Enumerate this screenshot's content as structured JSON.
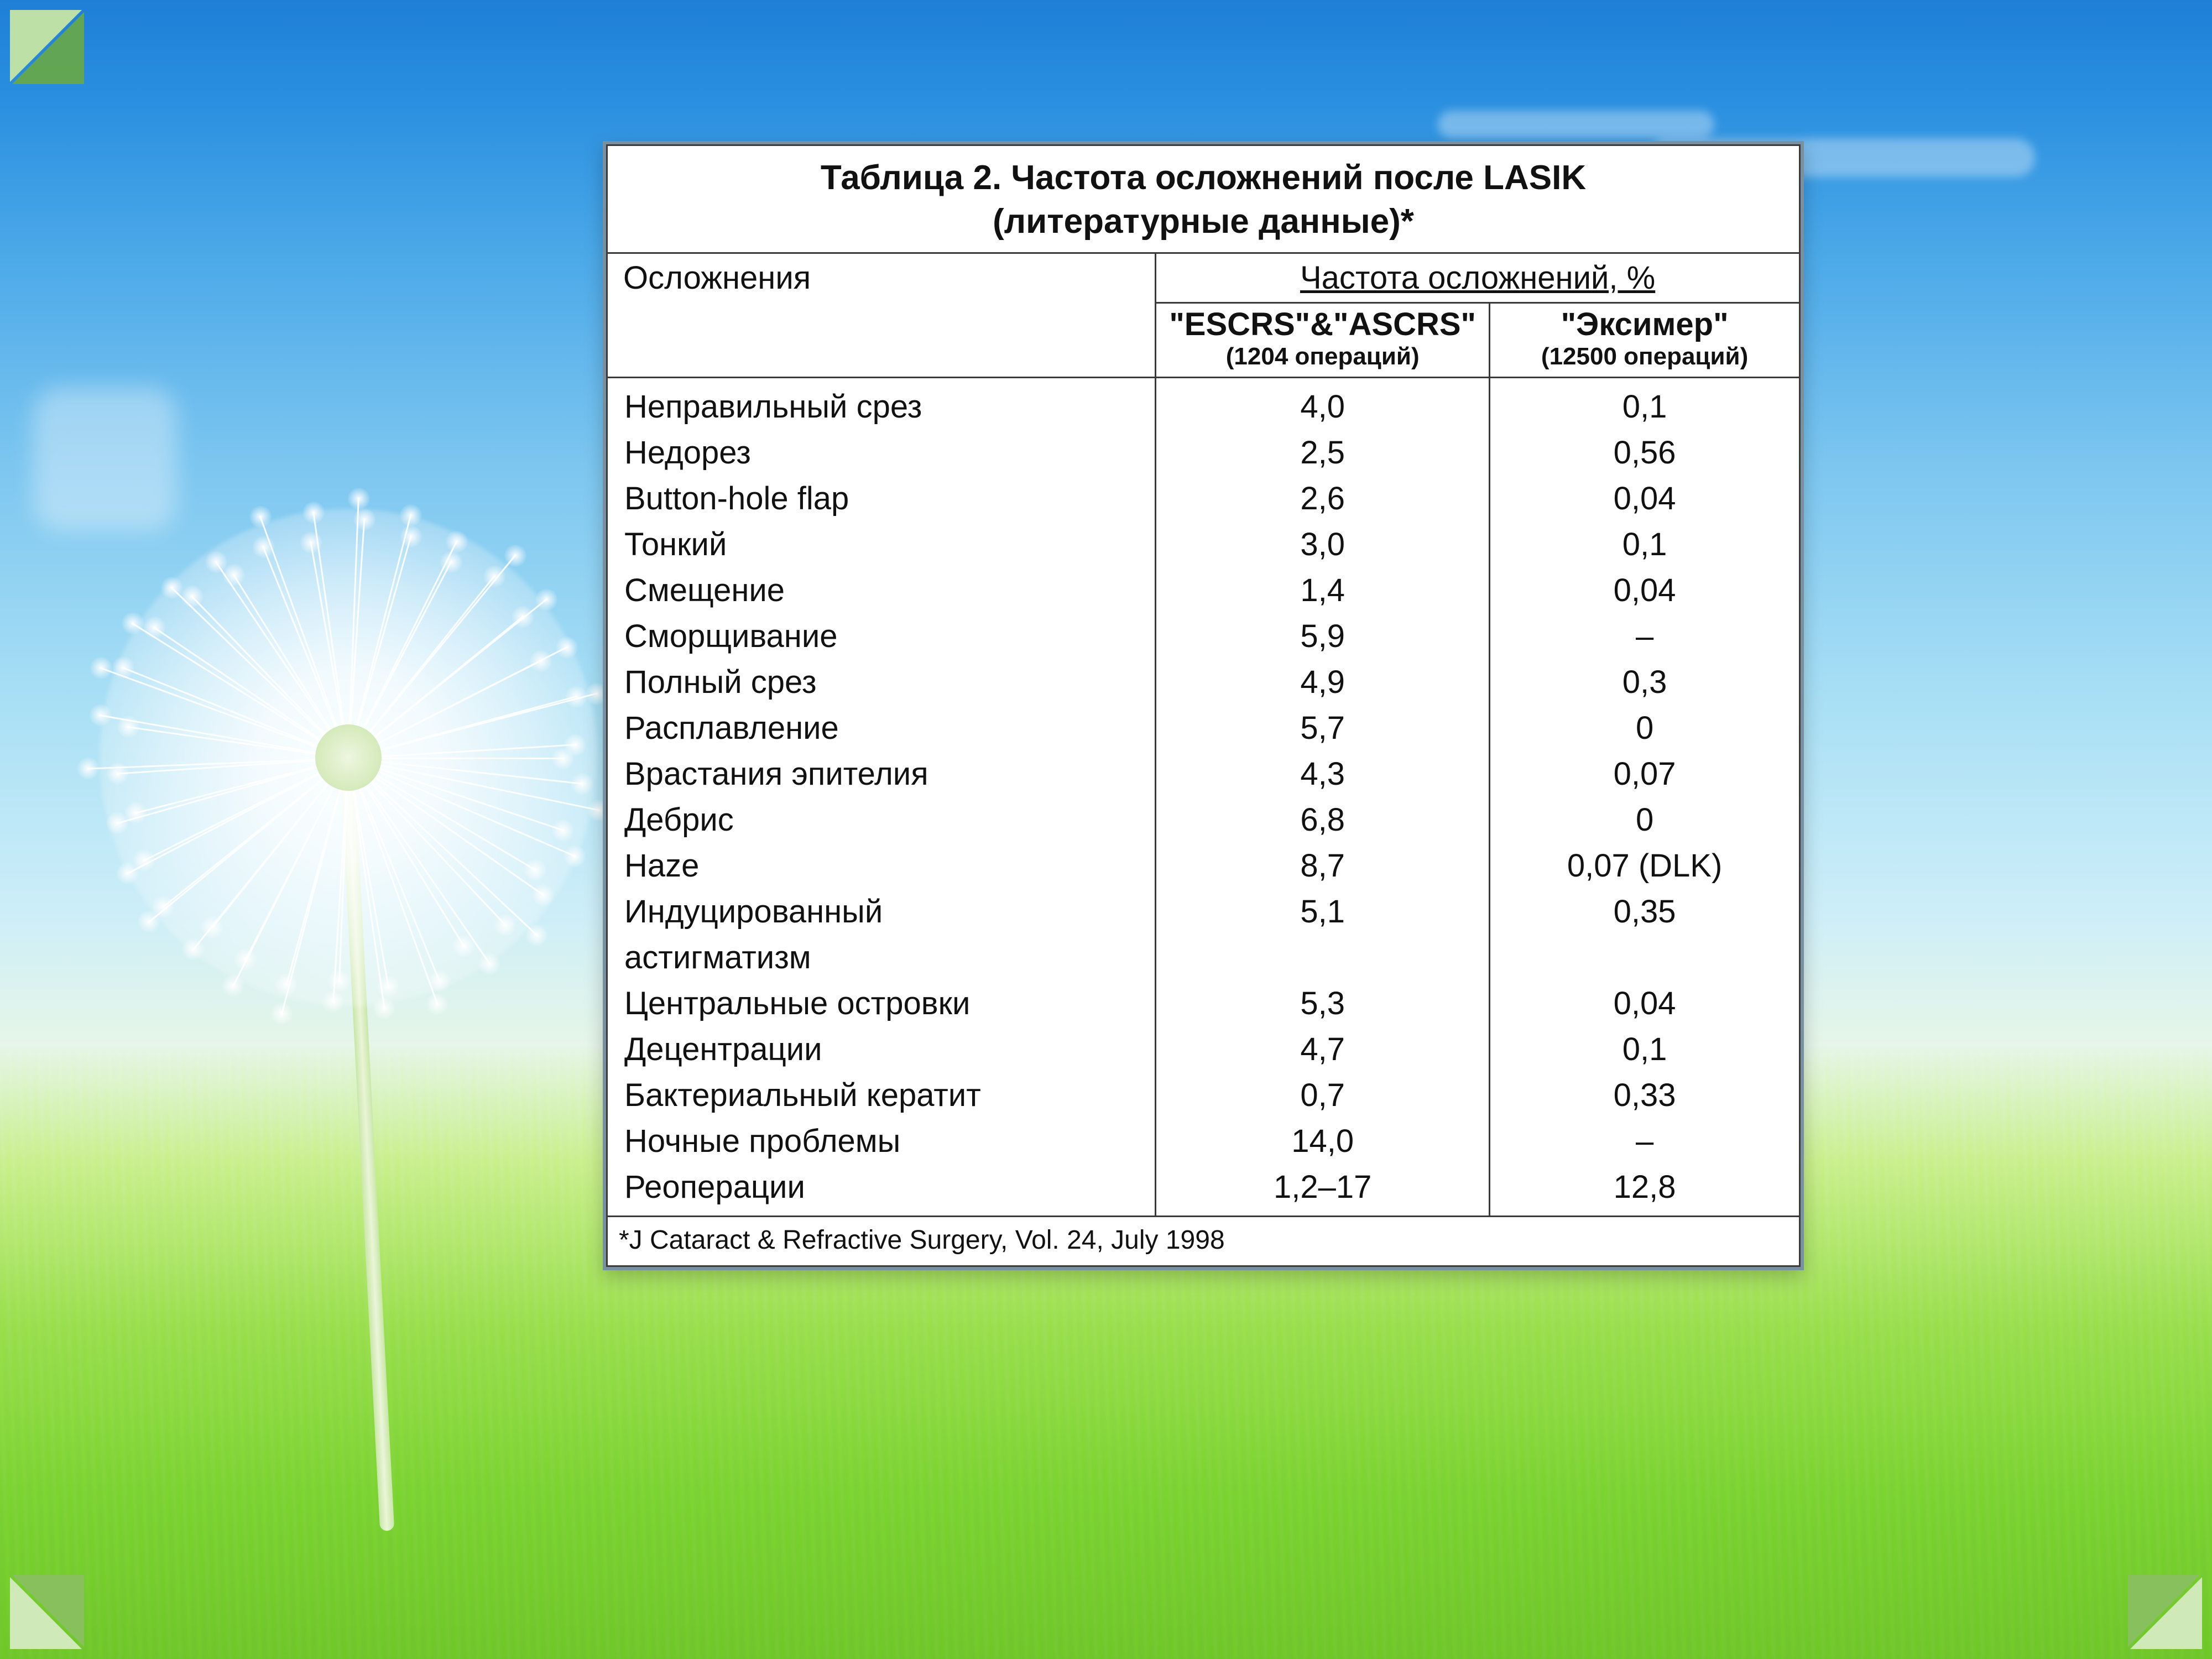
{
  "slide": {
    "background_gradient": [
      "#1e7fd6",
      "#2a8fe0",
      "#4aa8e8",
      "#7cc6f0",
      "#a8dff5",
      "#cdeef8",
      "#e6f6e8",
      "#c9ef8f",
      "#99de4f",
      "#7bd233",
      "#6fc52b"
    ],
    "corner_colors": {
      "light": "#cfe9b8",
      "dark": "#8abf63",
      "tl_light": "#bce0a6",
      "tl_dark": "#69a845"
    }
  },
  "table": {
    "type": "table",
    "panel_border_color": "#7890a0",
    "cell_border_color": "#3a3a3a",
    "background_color": "#ffffff",
    "text_color": "#111111",
    "font_family": "Arial",
    "title_fontsize_pt": 47,
    "body_fontsize_pt": 44,
    "subnote_fontsize_pt": 33,
    "footnote_fontsize_pt": 36,
    "title_line1": "Таблица 2. Частота осложнений после LASIK",
    "title_line2": "(литературные данные)*",
    "header_col1": "Осложнения",
    "header_freq": "Частота осложнений, %",
    "header_freq_underlined": true,
    "col2_header": "\"ESCRS\"&\"ASCRS\"",
    "col2_subnote": "(1204 операций)",
    "col3_header": "\"Эксимер\"",
    "col3_subnote": "(12500 операций)",
    "column_widths_pct": [
      46,
      28,
      26
    ],
    "rows": [
      {
        "label": "Неправильный срез",
        "c2": "4,0",
        "c3": "0,1"
      },
      {
        "label": "Недорез",
        "c2": "2,5",
        "c3": "0,56"
      },
      {
        "label": "Button-hole flap",
        "c2": "2,6",
        "c3": "0,04"
      },
      {
        "label": "Тонкий",
        "c2": "3,0",
        "c3": "0,1"
      },
      {
        "label": "Смещение",
        "c2": "1,4",
        "c3": "0,04"
      },
      {
        "label": "Сморщивание",
        "c2": "5,9",
        "c3": "–"
      },
      {
        "label": "Полный срез",
        "c2": "4,9",
        "c3": "0,3"
      },
      {
        "label": "Расплавление",
        "c2": "5,7",
        "c3": "0"
      },
      {
        "label": "Врастания эпителия",
        "c2": "4,3",
        "c3": "0,07"
      },
      {
        "label": "Дебрис",
        "c2": "6,8",
        "c3": "0"
      },
      {
        "label": "Haze",
        "c2": "8,7",
        "c3": "0,07 (DLK)"
      },
      {
        "label": "Индуцированный",
        "c2": "5,1",
        "c3": "0,35"
      },
      {
        "label": "астигматизм",
        "c2": "",
        "c3": ""
      },
      {
        "label": "Центральные островки",
        "c2": "5,3",
        "c3": "0,04"
      },
      {
        "label": "Децентрации",
        "c2": "4,7",
        "c3": "0,1"
      },
      {
        "label": "Бактериальный кератит",
        "c2": "0,7",
        "c3": "0,33"
      },
      {
        "label": "Ночные проблемы",
        "c2": "14,0",
        "c3": "–"
      },
      {
        "label": "Реоперации",
        "c2": "1,2–17",
        "c3": "12,8"
      }
    ],
    "footnote": "*J Cataract & Refractive Surgery, Vol. 24, July 1998"
  }
}
